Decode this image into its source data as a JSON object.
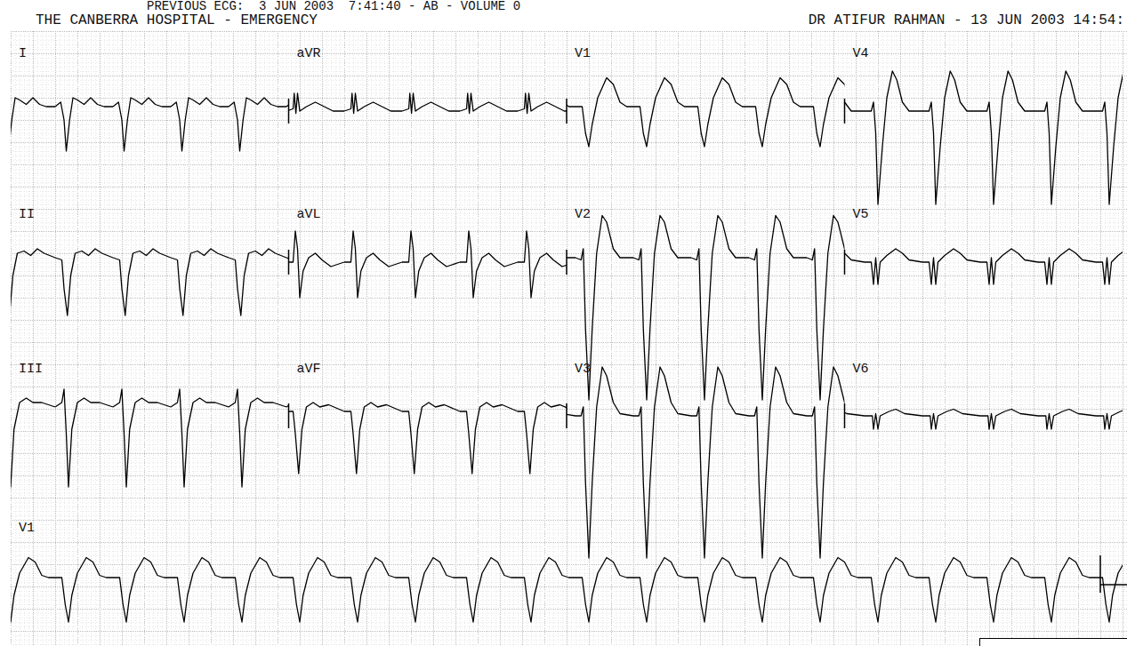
{
  "header": {
    "previous": "PREVIOUS ECG:  3 JUN 2003  7:41:40 - AB - VOLUME 0",
    "hospital": "THE CANBERRA HOSPITAL - EMERGENCY",
    "doctor": "DR ATIFUR RAHMAN - 13 JUN 2003 14:54:"
  },
  "chart_data": {
    "type": "line",
    "grid": true,
    "xlim": [
      0,
      10
    ],
    "beat_times": [
      -0.02,
      0.5,
      1.02,
      1.54,
      2.06,
      2.58,
      3.1,
      3.62,
      4.14,
      4.66,
      5.18,
      5.7,
      6.22,
      6.74,
      7.26,
      7.78,
      8.3,
      8.82,
      9.34,
      9.86
    ],
    "rows": [
      [
        {
          "label": "I",
          "xlim": [
            0,
            2.5
          ],
          "x": [
            -0.1,
            -0.05,
            -0.02,
            0,
            0.03,
            0.06,
            0.1,
            0.16,
            0.22,
            0.28,
            0.34,
            0.42
          ],
          "values": [
            0.1,
            0.2,
            -0.2,
            -0.9,
            -0.2,
            0.3,
            0.25,
            0.15,
            0.3,
            0.15,
            0.1,
            0.1
          ]
        },
        {
          "label": "aVR",
          "xlim": [
            2.5,
            5
          ],
          "x": [
            -0.1,
            -0.04,
            -0.03,
            -0.015,
            0,
            0.02,
            0.08,
            0.16,
            0.24,
            0.32,
            0.42
          ],
          "values": [
            0,
            0.05,
            0.4,
            -0.05,
            0.4,
            0,
            0.1,
            0.2,
            0.1,
            0,
            0
          ]
        },
        {
          "label": "V1",
          "xlim": [
            5,
            7.5
          ],
          "x": [
            -0.1,
            -0.04,
            -0.01,
            0.02,
            0.05,
            0.1,
            0.18,
            0.24,
            0.3,
            0.36,
            0.42
          ],
          "values": [
            0.1,
            0.1,
            -0.5,
            -0.8,
            -0.3,
            0.3,
            0.75,
            0.6,
            0.2,
            0.1,
            0.1
          ]
        },
        {
          "label": "V4",
          "xlim": [
            7.5,
            10
          ],
          "x": [
            -0.1,
            -0.04,
            -0.02,
            0,
            0.02,
            0.06,
            0.1,
            0.15,
            0.19,
            0.24,
            0.3,
            0.42
          ],
          "values": [
            0,
            0,
            0.2,
            -0.5,
            -2.1,
            -0.8,
            0.3,
            0.9,
            0.7,
            0.2,
            0,
            0
          ]
        }
      ],
      [
        {
          "label": "II",
          "xlim": [
            0,
            2.5
          ],
          "x": [
            -0.1,
            -0.04,
            -0.02,
            0.01,
            0.04,
            0.08,
            0.14,
            0.2,
            0.26,
            0.32,
            0.42
          ],
          "values": [
            0.1,
            0.05,
            -0.6,
            -1.2,
            -0.3,
            0.2,
            0.25,
            0.15,
            0.3,
            0.2,
            0.1
          ]
        },
        {
          "label": "aVL",
          "xlim": [
            2.5,
            5
          ],
          "x": [
            -0.1,
            -0.04,
            -0.02,
            0,
            0.02,
            0.05,
            0.1,
            0.16,
            0.22,
            0.3,
            0.42
          ],
          "values": [
            0,
            0,
            0.7,
            0.3,
            -0.8,
            -0.2,
            0.1,
            0.2,
            0.05,
            -0.1,
            0
          ]
        },
        {
          "label": "V2",
          "xlim": [
            5,
            7.5
          ],
          "x": [
            -0.1,
            -0.05,
            -0.03,
            -0.01,
            0.02,
            0.05,
            0.09,
            0.14,
            0.18,
            0.24,
            0.3,
            0.42
          ],
          "values": [
            0.1,
            0.05,
            0.3,
            -1.5,
            -3.1,
            -1.5,
            0.2,
            1.05,
            0.9,
            0.3,
            0.1,
            0.1
          ]
        },
        {
          "label": "V5",
          "xlim": [
            7.5,
            10
          ],
          "x": [
            -0.1,
            -0.04,
            -0.02,
            0,
            0.02,
            0.04,
            0.1,
            0.18,
            0.24,
            0.3,
            0.42
          ],
          "values": [
            0,
            0,
            -0.5,
            0.1,
            -0.5,
            0,
            0.15,
            0.3,
            0.2,
            0.05,
            0
          ]
        }
      ],
      [
        {
          "label": "III",
          "xlim": [
            0,
            2.5
          ],
          "x": [
            -0.1,
            -0.04,
            -0.02,
            0,
            0.02,
            0.05,
            0.1,
            0.16,
            0.22,
            0.3,
            0.42
          ],
          "values": [
            0.2,
            0.3,
            0.6,
            -0.4,
            -1.6,
            -0.3,
            0.3,
            0.4,
            0.3,
            0.3,
            0.2
          ]
        },
        {
          "label": "aVF",
          "xlim": [
            2.5,
            5
          ],
          "x": [
            -0.1,
            -0.04,
            -0.02,
            0.01,
            0.04,
            0.08,
            0.14,
            0.2,
            0.28,
            0.42
          ],
          "values": [
            0.1,
            0.1,
            -0.4,
            -1.3,
            -0.3,
            0.2,
            0.3,
            0.2,
            0.25,
            0.1
          ]
        },
        {
          "label": "V3",
          "xlim": [
            5,
            7.5
          ],
          "x": [
            -0.1,
            -0.05,
            -0.03,
            -0.01,
            0.02,
            0.05,
            0.09,
            0.14,
            0.18,
            0.24,
            0.3,
            0.42
          ],
          "values": [
            0,
            0,
            0.2,
            -1.5,
            -3.2,
            -1.5,
            0.2,
            1.1,
            0.9,
            0.3,
            0.05,
            0
          ]
        },
        {
          "label": "V6",
          "xlim": [
            7.5,
            10
          ],
          "x": [
            -0.1,
            -0.03,
            -0.02,
            0,
            0.02,
            0.04,
            0.12,
            0.18,
            0.26,
            0.42
          ],
          "values": [
            0,
            0,
            -0.3,
            0.05,
            -0.3,
            0,
            0.1,
            0.15,
            0.05,
            0
          ]
        }
      ],
      [
        {
          "label": "V1",
          "xlim": [
            0,
            10
          ],
          "x": [
            -0.1,
            -0.04,
            -0.01,
            0.02,
            0.05,
            0.1,
            0.18,
            0.24,
            0.3,
            0.36,
            0.42
          ],
          "values": [
            0.1,
            0.1,
            -0.5,
            -0.9,
            -0.3,
            0.2,
            0.55,
            0.45,
            0.15,
            0.1,
            0.1
          ]
        }
      ]
    ]
  }
}
